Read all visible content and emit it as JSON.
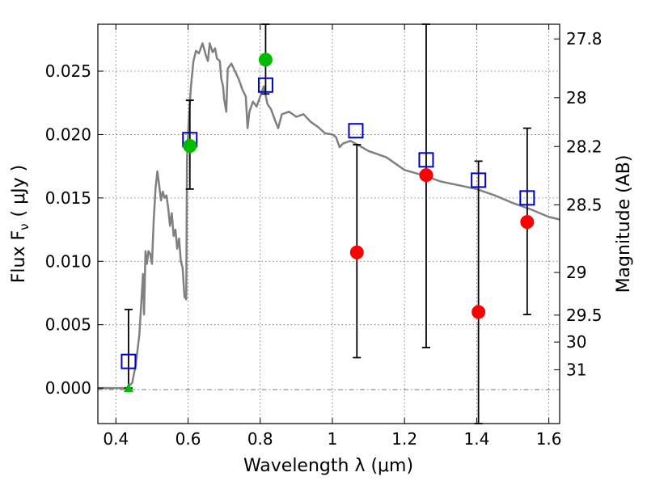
{
  "chart_data": {
    "type": "scatter",
    "xlabel": "Wavelength  λ (μm)",
    "ylabel": "Flux  F",
    "ylabel_sub": "ν",
    "ylabel_unit": "( μJy )",
    "y2label": "Magnitude (AB)",
    "xlim": [
      0.35,
      1.63
    ],
    "ylim": [
      -0.0028,
      0.0287
    ],
    "grid": true,
    "x_ticks": [
      {
        "value": 0.4,
        "label": "0.4"
      },
      {
        "value": 0.6,
        "label": "0.6"
      },
      {
        "value": 0.8,
        "label": "0.8"
      },
      {
        "value": 1.0,
        "label": "1"
      },
      {
        "value": 1.2,
        "label": "1.2"
      },
      {
        "value": 1.4,
        "label": "1.4"
      },
      {
        "value": 1.6,
        "label": "1.6"
      }
    ],
    "y_ticks": [
      {
        "value": 0.0,
        "label": "0.000"
      },
      {
        "value": 0.005,
        "label": "0.005"
      },
      {
        "value": 0.01,
        "label": "0.010"
      },
      {
        "value": 0.015,
        "label": "0.015"
      },
      {
        "value": 0.02,
        "label": "0.020"
      },
      {
        "value": 0.025,
        "label": "0.025"
      }
    ],
    "y2_ticks": [
      {
        "value": 27.8,
        "label": "27.8"
      },
      {
        "value": 28.0,
        "label": "28"
      },
      {
        "value": 28.2,
        "label": "28.2"
      },
      {
        "value": 28.5,
        "label": "28.5"
      },
      {
        "value": 29.0,
        "label": "29"
      },
      {
        "value": 29.5,
        "label": "29.5"
      },
      {
        "value": 30.0,
        "label": "30"
      },
      {
        "value": 31.0,
        "label": "31"
      }
    ],
    "series": [
      {
        "kind": "line",
        "color": "#808080",
        "points": [
          [
            0.35,
            0.0
          ],
          [
            0.43,
            0.0
          ],
          [
            0.445,
            0.0004
          ],
          [
            0.455,
            0.0018
          ],
          [
            0.465,
            0.0042
          ],
          [
            0.47,
            0.0065
          ],
          [
            0.475,
            0.009
          ],
          [
            0.478,
            0.0058
          ],
          [
            0.482,
            0.0108
          ],
          [
            0.486,
            0.0098
          ],
          [
            0.49,
            0.0108
          ],
          [
            0.495,
            0.0106
          ],
          [
            0.5,
            0.0098
          ],
          [
            0.505,
            0.0133
          ],
          [
            0.51,
            0.0158
          ],
          [
            0.515,
            0.0171
          ],
          [
            0.52,
            0.016
          ],
          [
            0.525,
            0.0148
          ],
          [
            0.53,
            0.0155
          ],
          [
            0.535,
            0.015
          ],
          [
            0.54,
            0.0152
          ],
          [
            0.545,
            0.0142
          ],
          [
            0.55,
            0.0128
          ],
          [
            0.555,
            0.0138
          ],
          [
            0.56,
            0.012
          ],
          [
            0.565,
            0.0125
          ],
          [
            0.57,
            0.011
          ],
          [
            0.575,
            0.0118
          ],
          [
            0.58,
            0.01
          ],
          [
            0.585,
            0.0095
          ],
          [
            0.59,
            0.0072
          ],
          [
            0.595,
            0.007
          ],
          [
            0.597,
            0.018
          ],
          [
            0.602,
            0.0212
          ],
          [
            0.608,
            0.0238
          ],
          [
            0.615,
            0.0258
          ],
          [
            0.622,
            0.0266
          ],
          [
            0.63,
            0.0264
          ],
          [
            0.64,
            0.0272
          ],
          [
            0.65,
            0.0262
          ],
          [
            0.655,
            0.0258
          ],
          [
            0.66,
            0.0272
          ],
          [
            0.668,
            0.0265
          ],
          [
            0.675,
            0.0268
          ],
          [
            0.68,
            0.026
          ],
          [
            0.688,
            0.0258
          ],
          [
            0.692,
            0.0244
          ],
          [
            0.697,
            0.0238
          ],
          [
            0.7,
            0.0228
          ],
          [
            0.706,
            0.0218
          ],
          [
            0.71,
            0.0252
          ],
          [
            0.72,
            0.0256
          ],
          [
            0.73,
            0.025
          ],
          [
            0.74,
            0.0244
          ],
          [
            0.75,
            0.0236
          ],
          [
            0.76,
            0.023
          ],
          [
            0.765,
            0.0205
          ],
          [
            0.77,
            0.0218
          ],
          [
            0.78,
            0.0226
          ],
          [
            0.79,
            0.0222
          ],
          [
            0.8,
            0.023
          ],
          [
            0.81,
            0.0238
          ],
          [
            0.82,
            0.0224
          ],
          [
            0.83,
            0.022
          ],
          [
            0.84,
            0.0212
          ],
          [
            0.85,
            0.0205
          ],
          [
            0.86,
            0.0216
          ],
          [
            0.88,
            0.0218
          ],
          [
            0.9,
            0.0214
          ],
          [
            0.92,
            0.0216
          ],
          [
            0.94,
            0.021
          ],
          [
            0.96,
            0.0206
          ],
          [
            0.98,
            0.0201
          ],
          [
            1.0,
            0.02
          ],
          [
            1.01,
            0.0198
          ],
          [
            1.02,
            0.019
          ],
          [
            1.03,
            0.0193
          ],
          [
            1.05,
            0.0195
          ],
          [
            1.07,
            0.0192
          ],
          [
            1.1,
            0.0187
          ],
          [
            1.15,
            0.0182
          ],
          [
            1.2,
            0.0172
          ],
          [
            1.25,
            0.0168
          ],
          [
            1.3,
            0.0163
          ],
          [
            1.35,
            0.016
          ],
          [
            1.4,
            0.0157
          ],
          [
            1.45,
            0.0152
          ],
          [
            1.5,
            0.0146
          ],
          [
            1.55,
            0.0141
          ],
          [
            1.6,
            0.0135
          ],
          [
            1.63,
            0.0133
          ]
        ]
      },
      {
        "kind": "marker",
        "marker": "square",
        "color": "#0000cc",
        "points": [
          {
            "x": 0.435,
            "y": 0.0021
          },
          {
            "x": 0.605,
            "y": 0.0196
          },
          {
            "x": 0.815,
            "y": 0.0239
          },
          {
            "x": 1.065,
            "y": 0.0203
          },
          {
            "x": 1.26,
            "y": 0.018
          },
          {
            "x": 1.405,
            "y": 0.0164
          },
          {
            "x": 1.54,
            "y": 0.015
          }
        ]
      },
      {
        "kind": "marker",
        "marker": "circle",
        "color": "#00bb00",
        "points": [
          {
            "x": 0.605,
            "y": 0.0191
          },
          {
            "x": 0.815,
            "y": 0.0259
          }
        ]
      },
      {
        "kind": "marker",
        "marker": "circle",
        "color": "#ff0000",
        "points": [
          {
            "x": 1.068,
            "y": 0.0107
          },
          {
            "x": 1.26,
            "y": 0.0168
          },
          {
            "x": 1.405,
            "y": 0.006
          },
          {
            "x": 1.54,
            "y": 0.0131
          }
        ]
      },
      {
        "kind": "marker",
        "marker": "triangle",
        "color": "#00bb00",
        "points": [
          {
            "x": 0.435,
            "y": 0.0
          }
        ]
      },
      {
        "kind": "errorbar",
        "color": "#000000",
        "bars": [
          {
            "x": 0.435,
            "low": 0.0,
            "high": 0.0062
          },
          {
            "x": 0.605,
            "low": 0.0157,
            "high": 0.0227
          },
          {
            "x": 0.815,
            "low": 0.0232,
            "high": 0.0287
          },
          {
            "x": 1.068,
            "low": 0.0024,
            "high": 0.0192
          },
          {
            "x": 1.26,
            "low": 0.0032,
            "high": 0.0287
          },
          {
            "x": 1.405,
            "low": -0.0028,
            "high": 0.0179
          },
          {
            "x": 1.54,
            "low": 0.0058,
            "high": 0.0205
          }
        ]
      }
    ]
  }
}
